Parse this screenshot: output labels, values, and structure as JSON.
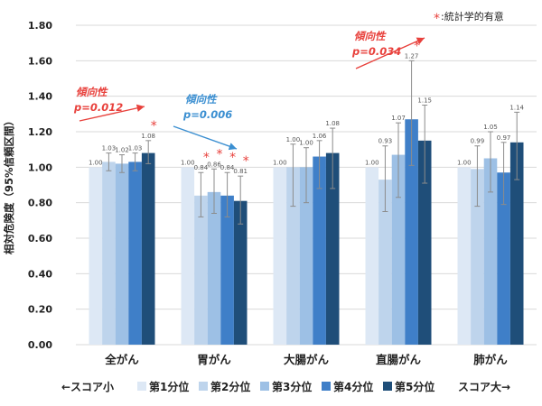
{
  "chart_data": {
    "type": "bar",
    "ylabel": "相対危険度（95%信頼区間）",
    "ylim": [
      0,
      1.8
    ],
    "yticks": [
      "0.00",
      "0.20",
      "0.40",
      "0.60",
      "0.80",
      "1.00",
      "1.20",
      "1.40",
      "1.60",
      "1.80"
    ],
    "grid": true,
    "categories": [
      "全がん",
      "胃がん",
      "大腸がん",
      "直腸がん",
      "肺がん"
    ],
    "series": [
      {
        "name": "第1分位",
        "color": "#dde8f5",
        "values": [
          1.0,
          1.0,
          1.0,
          1.0,
          1.0
        ],
        "labels": [
          "1.00",
          "1.00",
          "1.00",
          "1.00",
          "1.00"
        ],
        "ci": [
          null,
          null,
          null,
          null,
          null
        ],
        "significant": [
          false,
          false,
          false,
          false,
          false
        ]
      },
      {
        "name": "第2分位",
        "color": "#bed4ec",
        "values": [
          1.03,
          0.84,
          1.0,
          0.93,
          0.99
        ],
        "labels": [
          "1.03",
          "0.84",
          "1.00",
          "0.93",
          "0.99"
        ],
        "ci": [
          [
            0.98,
            1.08
          ],
          [
            0.72,
            0.97
          ],
          [
            0.78,
            1.13
          ],
          [
            0.75,
            1.12
          ],
          [
            0.78,
            1.12
          ]
        ],
        "significant": [
          false,
          true,
          false,
          false,
          false
        ]
      },
      {
        "name": "第3分位",
        "color": "#9dc0e5",
        "values": [
          1.02,
          0.86,
          1.0,
          1.07,
          1.05
        ],
        "labels": [
          "1.02",
          "0.86",
          "1.00",
          "1.07",
          "1.05"
        ],
        "ci": [
          [
            0.97,
            1.07
          ],
          [
            0.74,
            0.99
          ],
          [
            0.8,
            1.11
          ],
          [
            0.83,
            1.25
          ],
          [
            0.86,
            1.2
          ]
        ],
        "significant": [
          false,
          true,
          false,
          false,
          false
        ]
      },
      {
        "name": "第4分位",
        "color": "#3f7fc8",
        "values": [
          1.03,
          0.84,
          1.06,
          1.27,
          0.97
        ],
        "labels": [
          "1.03",
          "0.84",
          "1.06",
          "1.27",
          "0.97"
        ],
        "ci": [
          [
            0.98,
            1.08
          ],
          [
            0.72,
            0.97
          ],
          [
            0.88,
            1.15
          ],
          [
            1.01,
            1.6
          ],
          [
            0.79,
            1.14
          ]
        ],
        "significant": [
          false,
          true,
          false,
          true,
          false
        ]
      },
      {
        "name": "第5分位",
        "color": "#1f4e79",
        "values": [
          1.08,
          0.81,
          1.08,
          1.15,
          1.14
        ],
        "labels": [
          "1.08",
          "0.81",
          "1.08",
          "1.15",
          "1.14"
        ],
        "ci": [
          [
            1.02,
            1.15
          ],
          [
            0.68,
            0.95
          ],
          [
            0.88,
            1.22
          ],
          [
            0.91,
            1.35
          ],
          [
            0.93,
            1.31
          ]
        ],
        "significant": [
          true,
          true,
          false,
          false,
          false
        ]
      }
    ],
    "annotations": [
      {
        "label": "傾向性",
        "p": "p=0.012",
        "color": "#e8413c",
        "category": "全がん",
        "direction": "up"
      },
      {
        "label": "傾向性",
        "p": "p=0.006",
        "color": "#3b8fd1",
        "category": "胃がん",
        "direction": "down"
      },
      {
        "label": "傾向性",
        "p": "p=0.034",
        "color": "#e8413c",
        "category": "直腸がん",
        "direction": "up"
      }
    ],
    "significance_note": {
      "symbol": "*",
      "text": ":統計学的有意"
    },
    "legend": {
      "placement": "bottom",
      "left_text": "←スコア小",
      "right_text": "スコア大→"
    }
  }
}
